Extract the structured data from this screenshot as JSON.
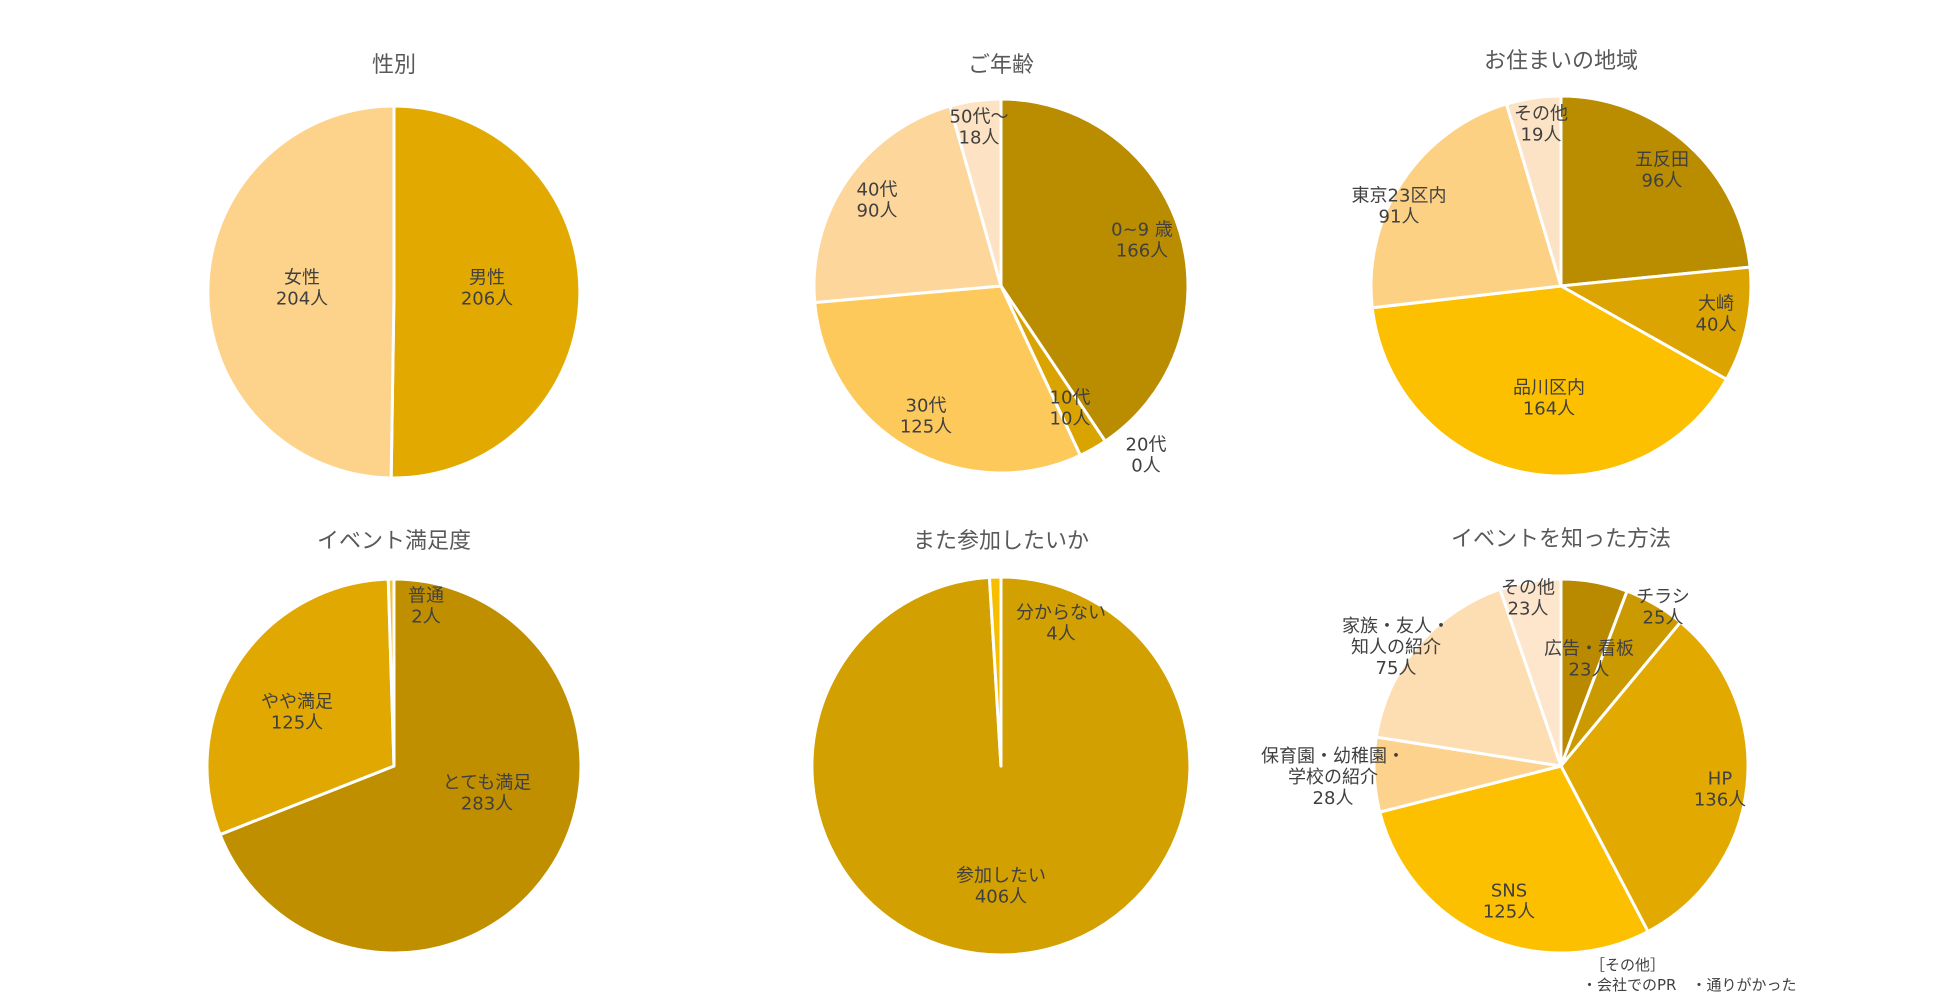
{
  "chart_data": [
    {
      "type": "pie",
      "title": "性別",
      "series": [
        {
          "categories": [
            "男性",
            "女性"
          ],
          "values": [
            206,
            204
          ],
          "labels": [
            [
              "男性",
              "206人"
            ],
            [
              "女性",
              "204人"
            ]
          ],
          "colors": [
            "#E2AA00",
            "#FDD28B"
          ]
        }
      ]
    },
    {
      "type": "pie",
      "title": "ご年齢",
      "series": [
        {
          "categories": [
            "0~9 歳",
            "10代",
            "20代",
            "30代",
            "40代",
            "50代～"
          ],
          "values": [
            166,
            10,
            0,
            125,
            90,
            18
          ],
          "labels": [
            [
              "0~9 歳",
              "166人"
            ],
            [
              "10代",
              "10人"
            ],
            [
              "20代",
              "0人"
            ],
            [
              "30代",
              "125人"
            ],
            [
              "40代",
              "90人"
            ],
            [
              "50代～",
              "18人"
            ]
          ],
          "colors": [
            "#BA8C00",
            "#D9A300",
            "#E4AA00",
            "#FDC95B",
            "#FDD69B",
            "#FDE3C3"
          ]
        }
      ]
    },
    {
      "type": "pie",
      "title": "お住まいの地域",
      "series": [
        {
          "categories": [
            "五反田",
            "大崎",
            "品川区内",
            "東京23区内",
            "その他"
          ],
          "values": [
            96,
            40,
            164,
            91,
            19
          ],
          "labels": [
            [
              "五反田",
              "96人"
            ],
            [
              "大崎",
              "40人"
            ],
            [
              "品川区内",
              "164人"
            ],
            [
              "東京23区内",
              "91人"
            ],
            [
              "その他",
              "19人"
            ]
          ],
          "colors": [
            "#BA8C00",
            "#DCA400",
            "#FCC000",
            "#FDD183",
            "#FDE3C6"
          ]
        }
      ]
    },
    {
      "type": "pie",
      "title": "イベント満足度",
      "series": [
        {
          "categories": [
            "とても満足",
            "やや満足",
            "普通"
          ],
          "values": [
            283,
            125,
            2
          ],
          "labels": [
            [
              "とても満足",
              "283人"
            ],
            [
              "やや満足",
              "125人"
            ],
            [
              "普通",
              "2人"
            ]
          ],
          "colors": [
            "#BF8F00",
            "#E0A800",
            "#F3C237"
          ]
        }
      ]
    },
    {
      "type": "pie",
      "title": "また参加したいか",
      "series": [
        {
          "categories": [
            "参加したい",
            "分からない"
          ],
          "values": [
            406,
            4
          ],
          "labels": [
            [
              "参加したい",
              "406人"
            ],
            [
              "分からない",
              "4人"
            ]
          ],
          "colors": [
            "#D2A000",
            "#F7BE00"
          ]
        }
      ]
    },
    {
      "type": "pie",
      "title": "イベントを知った方法",
      "series": [
        {
          "categories": [
            "チラシ",
            "広告・看板",
            "HP",
            "SNS",
            "保育園・幼稚園・学校の紹介",
            "家族・友人・知人の紹介",
            "その他"
          ],
          "values": [
            25,
            23,
            136,
            125,
            28,
            75,
            23
          ],
          "labels": [
            [
              "チラシ",
              "25人"
            ],
            [
              "広告・看板",
              "23人"
            ],
            [
              "HP",
              "136人"
            ],
            [
              "SNS",
              "125人"
            ],
            [
              "保育園・幼稚園・",
              "学校の紹介",
              "28人"
            ],
            [
              "家族・友人・",
              "知人の紹介",
              "75人"
            ],
            [
              "その他",
              "23人"
            ]
          ],
          "colors": [
            "#B98A00",
            "#CB9A00",
            "#E2A900",
            "#FCC000",
            "#FDD28D",
            "#FDDDB2",
            "#FDE6CC"
          ]
        }
      ],
      "note": [
        "［その他］",
        "・会社でのPR　・通りがかった"
      ]
    }
  ]
}
